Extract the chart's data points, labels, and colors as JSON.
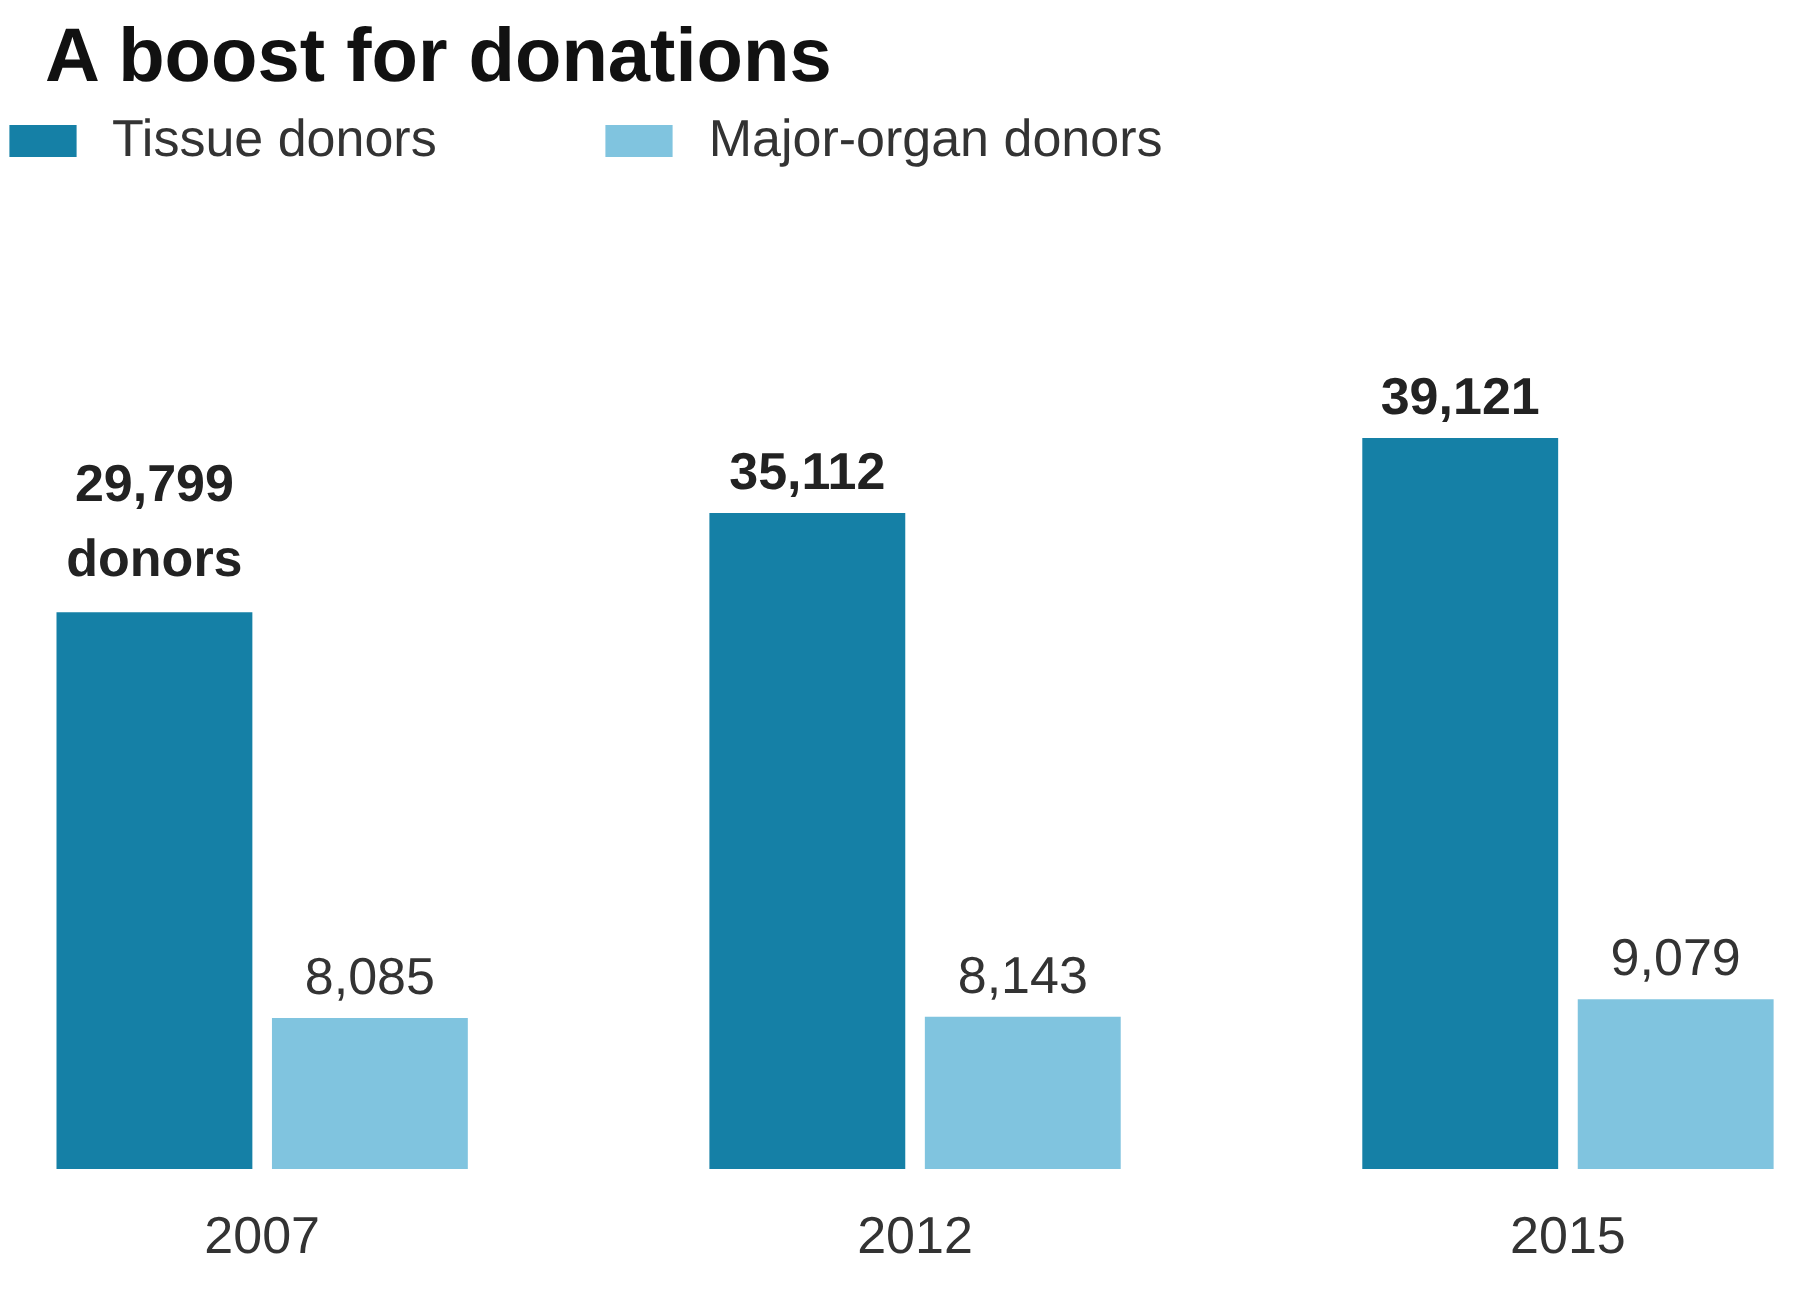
{
  "chart_data": {
    "type": "bar",
    "title": "A boost for donations",
    "categories": [
      "2007",
      "2012",
      "2015"
    ],
    "series": [
      {
        "name": "Tissue donors",
        "color": "#1580a6",
        "values": [
          29799,
          35112,
          39121
        ],
        "value_labels": [
          "29,799\ndonors",
          "35,112",
          "39,121"
        ]
      },
      {
        "name": "Major-organ donors",
        "color": "#80c4df",
        "values": [
          8085,
          8143,
          9079
        ],
        "value_labels": [
          "8,085",
          "8,143",
          "9,079"
        ]
      }
    ],
    "legend": "top left",
    "grid": false
  }
}
